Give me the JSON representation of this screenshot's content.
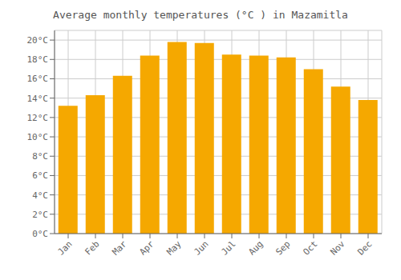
{
  "chart_data": {
    "type": "bar",
    "title": "Average monthly temperatures (°C ) in Mazamitla",
    "categories": [
      "Jan",
      "Feb",
      "Mar",
      "Apr",
      "May",
      "Jun",
      "Jul",
      "Aug",
      "Sep",
      "Oct",
      "Nov",
      "Dec"
    ],
    "values": [
      13.2,
      14.3,
      16.3,
      18.4,
      19.8,
      19.7,
      18.5,
      18.4,
      18.2,
      17.0,
      15.2,
      13.8
    ],
    "color": "#F5A800",
    "ylim": [
      0,
      21
    ],
    "yticks": [
      {
        "value": 0,
        "label": "0°C"
      },
      {
        "value": 2,
        "label": "2°C"
      },
      {
        "value": 4,
        "label": "4°C"
      },
      {
        "value": 6,
        "label": "6°C"
      },
      {
        "value": 8,
        "label": "8°C"
      },
      {
        "value": 10,
        "label": "10°C"
      },
      {
        "value": 12,
        "label": "12°C"
      },
      {
        "value": 14,
        "label": "14°C"
      },
      {
        "value": 16,
        "label": "16°C"
      },
      {
        "value": 18,
        "label": "18°C"
      },
      {
        "value": 20,
        "label": "20°C"
      }
    ],
    "grid": true
  }
}
